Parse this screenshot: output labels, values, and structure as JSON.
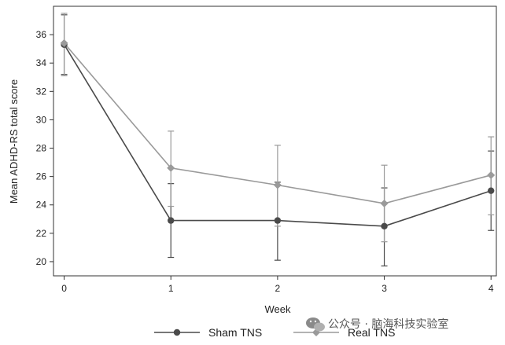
{
  "chart_data": {
    "type": "line",
    "x": [
      0,
      1,
      2,
      3,
      4
    ],
    "xlabel": "Week",
    "ylabel": "Mean ADHD-RS total score",
    "xlim": [
      -0.1,
      4.05
    ],
    "ylim": [
      19,
      38
    ],
    "xticks": [
      0,
      1,
      2,
      3,
      4
    ],
    "yticks": [
      20,
      22,
      24,
      26,
      28,
      30,
      32,
      34,
      36
    ],
    "grid": false,
    "legend_position": "bottom",
    "series": [
      {
        "name": "Sham TNS",
        "marker": "circle",
        "color": "#4a4a4a",
        "values": [
          35.3,
          22.9,
          22.9,
          22.5,
          25.0
        ],
        "error_low": [
          33.2,
          20.3,
          20.1,
          19.7,
          22.2
        ],
        "error_high": [
          37.4,
          25.5,
          25.6,
          25.2,
          27.8
        ]
      },
      {
        "name": "Real TNS",
        "marker": "diamond",
        "color": "#9a9a9a",
        "values": [
          35.4,
          26.6,
          25.4,
          24.1,
          26.1
        ],
        "error_low": [
          33.1,
          23.9,
          22.5,
          21.4,
          23.3
        ],
        "error_high": [
          37.5,
          29.2,
          28.2,
          26.8,
          28.8
        ]
      }
    ]
  },
  "watermark": {
    "text": "公众号 · 脑海科技实验室",
    "icon": "wechat-icon"
  }
}
